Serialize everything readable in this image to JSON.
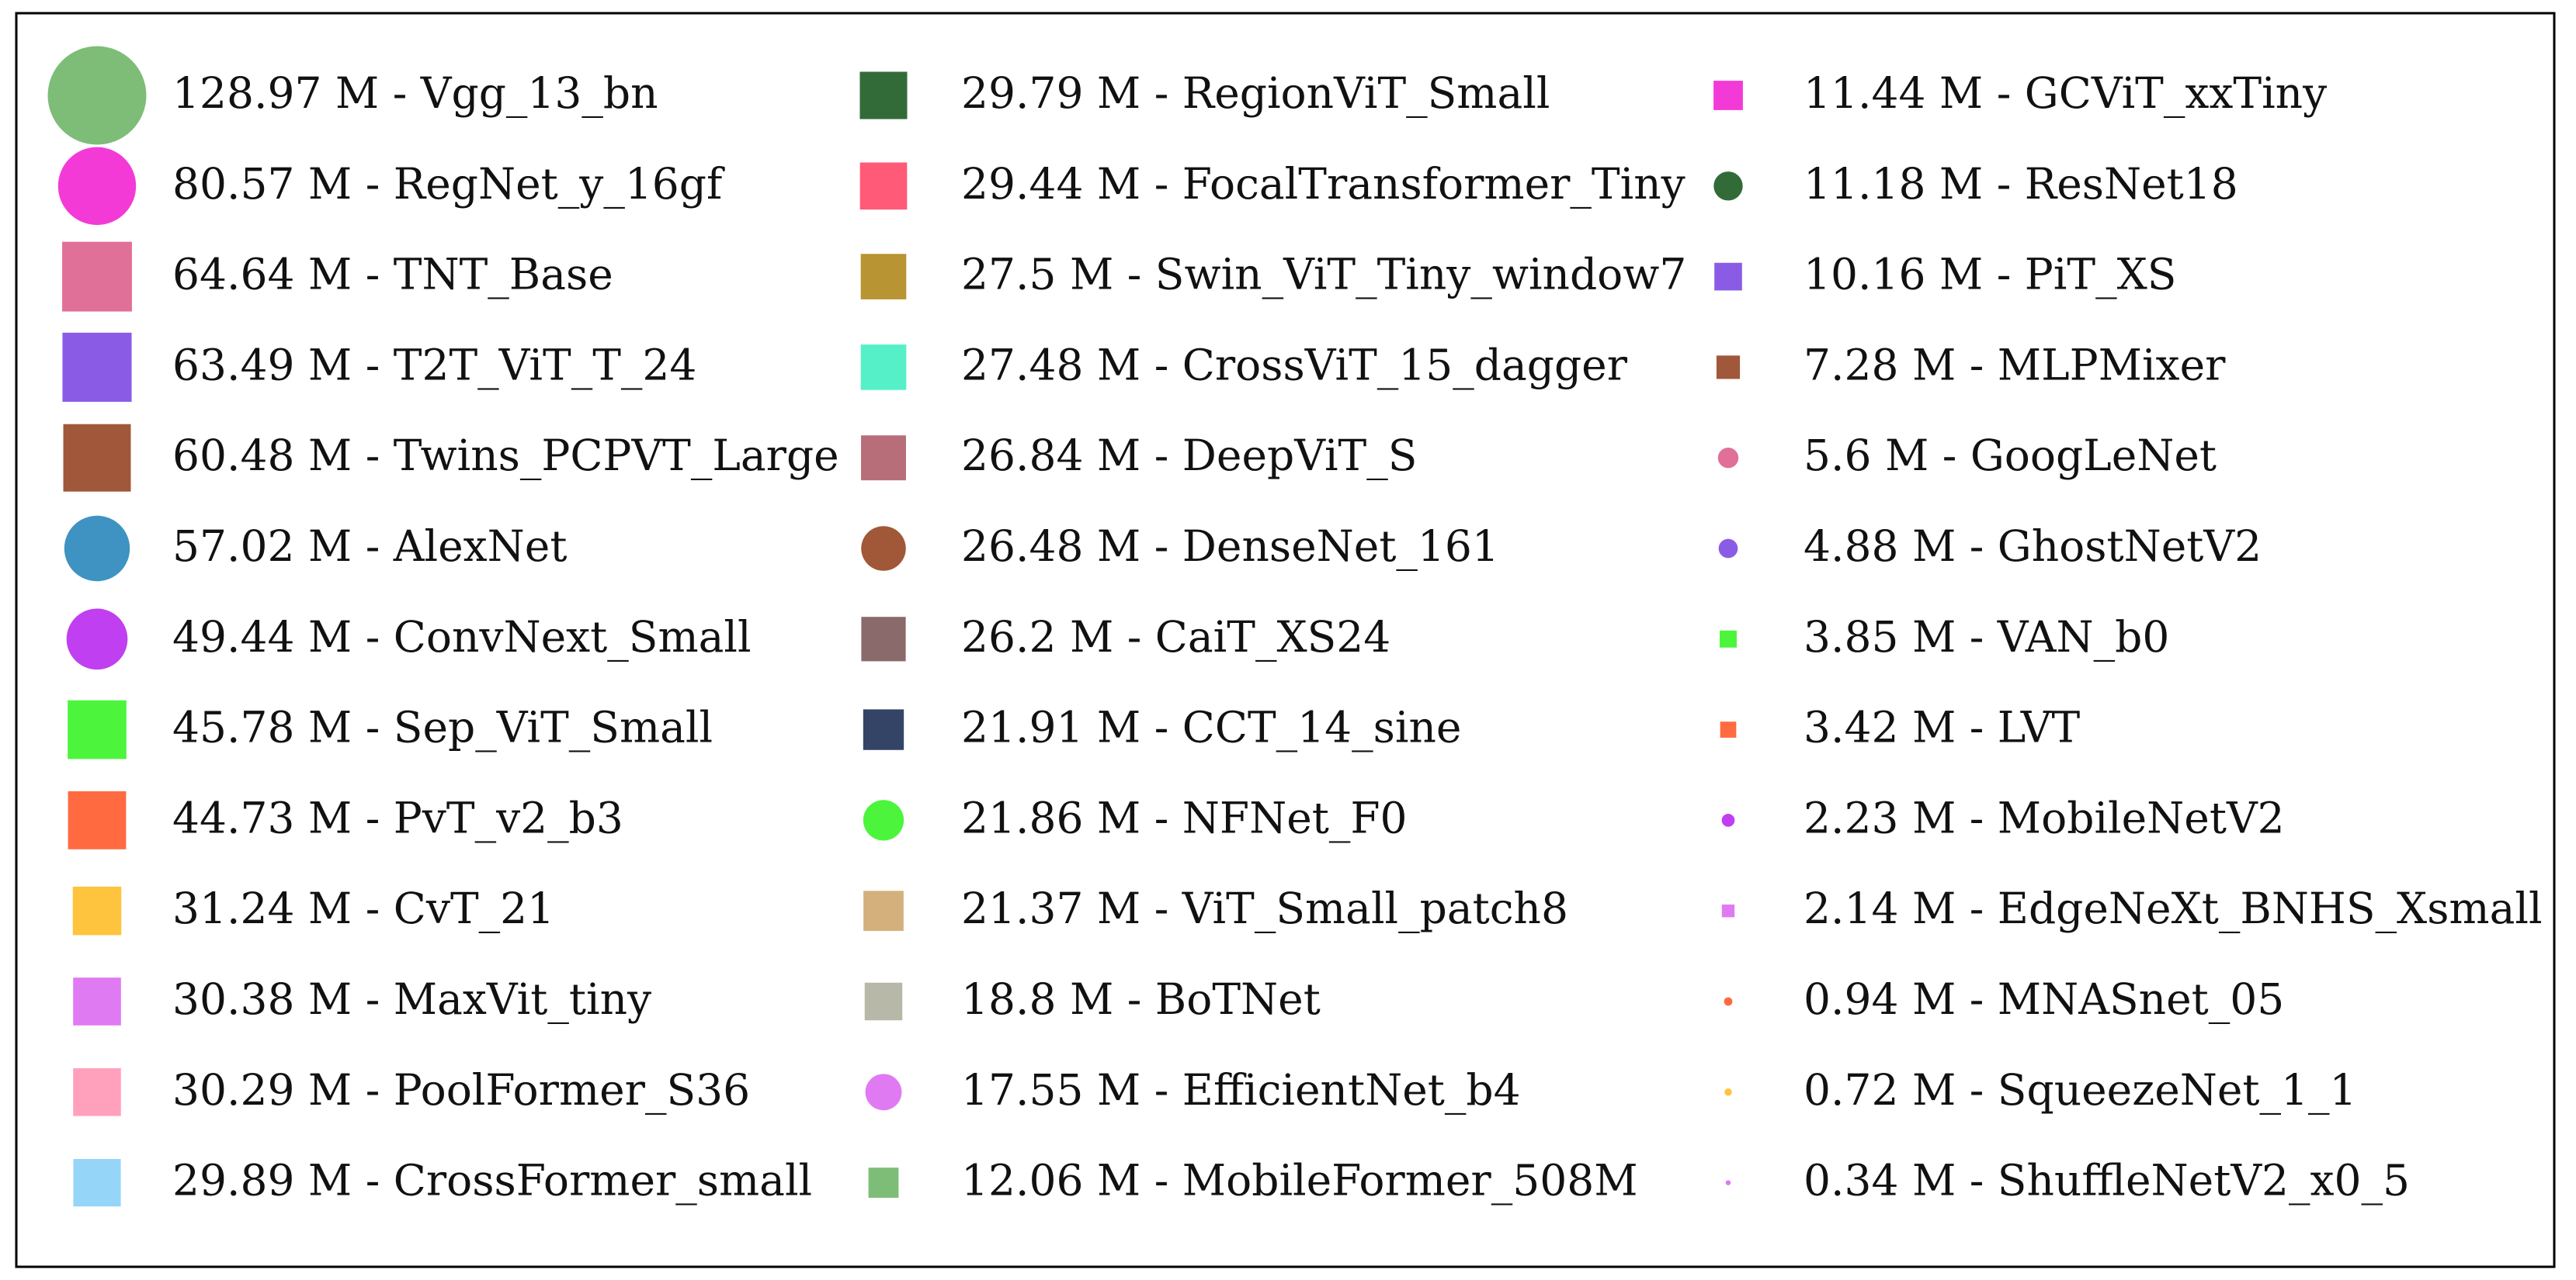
{
  "chart_data": {
    "type": "legend",
    "marker_scale": "sqrt",
    "items": [
      {
        "value": 128.97,
        "label": "128.97 M - Vgg_13_bn",
        "marker": "circle",
        "color": "#7dbd78"
      },
      {
        "value": 80.57,
        "label": "80.57 M - RegNet_y_16gf",
        "marker": "circle",
        "color": "#f43ad6"
      },
      {
        "value": 64.64,
        "label": "64.64 M - TNT_Base",
        "marker": "square",
        "color": "#e07098"
      },
      {
        "value": 63.49,
        "label": "63.49 M - T2T_ViT_T_24",
        "marker": "square",
        "color": "#8a5ce6"
      },
      {
        "value": 60.48,
        "label": "60.48 M - Twins_PCPVT_Large",
        "marker": "square",
        "color": "#a0573a"
      },
      {
        "value": 57.02,
        "label": "57.02 M - AlexNet",
        "marker": "circle",
        "color": "#3f93c2"
      },
      {
        "value": 49.44,
        "label": "49.44 M - ConvNext_Small",
        "marker": "circle",
        "color": "#c03ff0"
      },
      {
        "value": 45.78,
        "label": "45.78 M - Sep_ViT_Small",
        "marker": "square",
        "color": "#4cf53c"
      },
      {
        "value": 44.73,
        "label": "44.73 M - PvT_v2_b3",
        "marker": "square",
        "color": "#ff6a40"
      },
      {
        "value": 31.24,
        "label": "31.24 M - CvT_21",
        "marker": "square",
        "color": "#ffc43d"
      },
      {
        "value": 30.38,
        "label": "30.38 M - MaxVit_tiny",
        "marker": "square",
        "color": "#e07af2"
      },
      {
        "value": 30.29,
        "label": "30.29 M - PoolFormer_S36",
        "marker": "square",
        "color": "#ffa0bc"
      },
      {
        "value": 29.89,
        "label": "29.89 M - CrossFormer_small",
        "marker": "square",
        "color": "#95d5f7"
      },
      {
        "value": 29.79,
        "label": "29.79 M - RegionViT_Small",
        "marker": "square",
        "color": "#336b38"
      },
      {
        "value": 29.44,
        "label": "29.44 M - FocalTransformer_Tiny",
        "marker": "square",
        "color": "#ff5a78"
      },
      {
        "value": 27.5,
        "label": "27.5 M - Swin_ViT_Tiny_window7",
        "marker": "square",
        "color": "#b89433"
      },
      {
        "value": 27.48,
        "label": "27.48 M - CrossViT_15_dagger",
        "marker": "square",
        "color": "#56f0c8"
      },
      {
        "value": 26.84,
        "label": "26.84 M - DeepViT_S",
        "marker": "square",
        "color": "#b86e78"
      },
      {
        "value": 26.48,
        "label": "26.48 M - DenseNet_161",
        "marker": "circle",
        "color": "#a05838"
      },
      {
        "value": 26.2,
        "label": "26.2 M - CaiT_XS24",
        "marker": "square",
        "color": "#8a6a6a"
      },
      {
        "value": 21.91,
        "label": "21.91 M - CCT_14_sine",
        "marker": "square",
        "color": "#334466"
      },
      {
        "value": 21.86,
        "label": "21.86 M - NFNet_F0",
        "marker": "circle",
        "color": "#4cf53c"
      },
      {
        "value": 21.37,
        "label": "21.37 M - ViT_Small_patch8",
        "marker": "square",
        "color": "#d4b07c"
      },
      {
        "value": 18.8,
        "label": "18.8 M - BoTNet",
        "marker": "square",
        "color": "#b8b8a8"
      },
      {
        "value": 17.55,
        "label": "17.55 M - EfficientNet_b4",
        "marker": "circle",
        "color": "#e07af2"
      },
      {
        "value": 12.06,
        "label": "12.06 M - MobileFormer_508M",
        "marker": "square",
        "color": "#7dbd78"
      },
      {
        "value": 11.44,
        "label": "11.44 M - GCViT_xxTiny",
        "marker": "square",
        "color": "#f43ad6"
      },
      {
        "value": 11.18,
        "label": "11.18 M - ResNet18",
        "marker": "circle",
        "color": "#336b38"
      },
      {
        "value": 10.16,
        "label": "10.16 M - PiT_XS",
        "marker": "square",
        "color": "#8a5ce6"
      },
      {
        "value": 7.28,
        "label": "7.28 M - MLPMixer",
        "marker": "square",
        "color": "#a0573a"
      },
      {
        "value": 5.6,
        "label": "5.6 M - GoogLeNet",
        "marker": "circle",
        "color": "#e07098"
      },
      {
        "value": 4.88,
        "label": "4.88 M - GhostNetV2",
        "marker": "circle",
        "color": "#8a5ce6"
      },
      {
        "value": 3.85,
        "label": "3.85 M - VAN_b0",
        "marker": "square",
        "color": "#4cf53c"
      },
      {
        "value": 3.42,
        "label": "3.42 M - LVT",
        "marker": "square",
        "color": "#ff6a40"
      },
      {
        "value": 2.23,
        "label": "2.23 M - MobileNetV2",
        "marker": "circle",
        "color": "#c03ff0"
      },
      {
        "value": 2.14,
        "label": "2.14 M - EdgeNeXt_BNHS_Xsmall",
        "marker": "square",
        "color": "#e07af2"
      },
      {
        "value": 0.94,
        "label": "0.94 M - MNASnet_05",
        "marker": "circle",
        "color": "#ff6a40"
      },
      {
        "value": 0.72,
        "label": "0.72 M - SqueezeNet_1_1",
        "marker": "circle",
        "color": "#ffc43d"
      },
      {
        "value": 0.34,
        "label": "0.34 M - ShuffleNetV2_x0_5",
        "marker": "circle",
        "color": "#e07af2"
      }
    ]
  }
}
